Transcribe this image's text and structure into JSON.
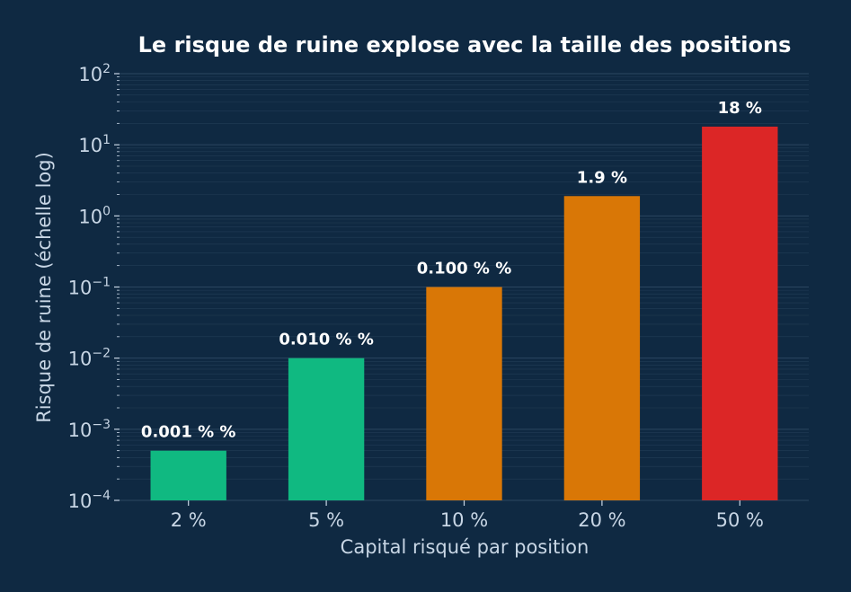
{
  "chart_data": {
    "type": "bar",
    "title": "Le risque de ruine explose avec la taille des positions",
    "xlabel": "Capital risqué par position",
    "ylabel": "Risque de ruine (échelle log)",
    "yscale": "log",
    "ylim": [
      0.0001,
      100
    ],
    "grid": true,
    "categories": [
      "2 %",
      "5 %",
      "10 %",
      "20 %",
      "50 %"
    ],
    "values": [
      0.0005,
      0.01,
      0.1,
      1.9,
      18
    ],
    "data_labels": [
      "0.001 % %",
      "0.010 % %",
      "0.100 % %",
      "1.9 %",
      "18 %"
    ],
    "colors": [
      "#10b981",
      "#10b981",
      "#d97706",
      "#d97706",
      "#dc2626"
    ],
    "y_ticks": [
      {
        "base": "10",
        "exp": "−4"
      },
      {
        "base": "10",
        "exp": "−3"
      },
      {
        "base": "10",
        "exp": "−2"
      },
      {
        "base": "10",
        "exp": "−1"
      },
      {
        "base": "10",
        "exp": "0"
      },
      {
        "base": "10",
        "exp": "1"
      },
      {
        "base": "10",
        "exp": "2"
      }
    ]
  },
  "colors": {
    "background": "#0f2942",
    "text": "#c8d6e5",
    "grid": "#2b4660"
  }
}
